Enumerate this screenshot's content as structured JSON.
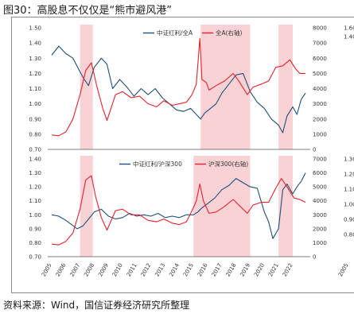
{
  "figure": {
    "title": "图30：高股息不仅仅是“熊市避风港”",
    "source": "资料来源：Wind，国信证券经济研究所整理"
  },
  "colors": {
    "blue": "#1f4e79",
    "red": "#e8202a",
    "shade": "#f9d2d6"
  },
  "chart_data": [
    {
      "type": "line",
      "x_range": [
        2005.0,
        2022.9
      ],
      "ylim_left": [
        0.7,
        1.5
      ],
      "left_ticks": [
        "1.50",
        "1.40",
        "1.30",
        "1.20",
        "1.10",
        "1.00",
        "0.90",
        "0.80",
        "0.70"
      ],
      "ylim_right": [
        0,
        8000
      ],
      "right_ticks": [
        "8000",
        "7000",
        "6000",
        "5000",
        "4000",
        "3000",
        "2000",
        "1000",
        "0"
      ],
      "right_edge_ticks": [
        "1.60",
        "1.40"
      ],
      "shaded_periods": [
        [
          2007.0,
          2007.9
        ],
        [
          2015.5,
          2019.0
        ],
        [
          2021.0,
          2022.0
        ]
      ],
      "legend_position": "top-center",
      "series": [
        {
          "name": "中证红利/全A",
          "axis": "left",
          "color": "#1f4e79",
          "x": [
            2005.0,
            2005.5,
            2006.0,
            2006.5,
            2007.0,
            2007.3,
            2007.6,
            2008.0,
            2008.5,
            2008.9,
            2009.3,
            2009.8,
            2010.3,
            2010.8,
            2011.3,
            2011.8,
            2012.3,
            2012.8,
            2013.3,
            2013.8,
            2014.3,
            2014.8,
            2015.2,
            2015.5,
            2015.8,
            2016.2,
            2016.6,
            2017.0,
            2017.5,
            2018.0,
            2018.5,
            2019.0,
            2019.5,
            2020.0,
            2020.5,
            2021.0,
            2021.3,
            2021.6,
            2022.0,
            2022.3,
            2022.6,
            2022.9
          ],
          "y": [
            1.32,
            1.38,
            1.33,
            1.3,
            1.21,
            1.16,
            1.12,
            1.24,
            1.3,
            1.26,
            1.1,
            1.16,
            1.11,
            1.05,
            1.1,
            1.06,
            1.1,
            1.04,
            1.0,
            0.96,
            0.95,
            0.97,
            0.93,
            0.9,
            0.94,
            0.97,
            1.0,
            1.07,
            1.13,
            1.19,
            1.2,
            1.08,
            1.01,
            0.97,
            0.9,
            0.86,
            0.81,
            0.92,
            0.98,
            0.93,
            1.03,
            1.07
          ]
        },
        {
          "name": "全A(右轴)",
          "axis": "right",
          "color": "#e8202a",
          "x": [
            2005.0,
            2005.5,
            2006.0,
            2006.5,
            2007.0,
            2007.4,
            2007.8,
            2008.2,
            2008.6,
            2008.9,
            2009.5,
            2010.0,
            2010.6,
            2011.2,
            2011.8,
            2012.4,
            2012.9,
            2013.5,
            2014.0,
            2014.5,
            2014.9,
            2015.2,
            2015.45,
            2015.6,
            2015.9,
            2016.1,
            2016.6,
            2017.2,
            2017.8,
            2018.2,
            2018.8,
            2019.2,
            2019.8,
            2020.3,
            2020.8,
            2021.3,
            2021.8,
            2022.2,
            2022.5,
            2022.9
          ],
          "y": [
            950,
            900,
            1150,
            2000,
            3600,
            5200,
            5700,
            4100,
            2700,
            1900,
            3600,
            3800,
            3400,
            3500,
            3000,
            2800,
            3200,
            2900,
            3000,
            3100,
            3600,
            4300,
            7300,
            4600,
            4400,
            3900,
            4200,
            4500,
            5000,
            4500,
            3600,
            4100,
            4300,
            4500,
            5400,
            5500,
            5900,
            5300,
            5000,
            5000
          ]
        }
      ]
    },
    {
      "type": "line",
      "x_range": [
        2005.0,
        2022.9
      ],
      "ylim_left": [
        0.7,
        1.4
      ],
      "left_ticks": [
        "1.40",
        "1.30",
        "1.20",
        "1.10",
        "1.00",
        "0.90",
        "0.80",
        "0.70"
      ],
      "ylim_right": [
        0,
        7000
      ],
      "right_ticks": [
        "7000",
        "6000",
        "5000",
        "4000",
        "3000",
        "2000",
        "1000",
        "0"
      ],
      "right_edge_ticks": [
        "1.30",
        "1.20",
        "1.10",
        "1.00",
        "0.90",
        "0.80"
      ],
      "shaded_periods": [
        [
          2007.0,
          2007.9
        ],
        [
          2015.0,
          2019.0
        ],
        [
          2021.0,
          2022.0
        ]
      ],
      "legend_position": "top-center",
      "x_tick_labels": [
        "2005",
        "2006",
        "2007",
        "2008",
        "2009",
        "2010",
        "2011",
        "2012",
        "2013",
        "2014",
        "2015",
        "2016",
        "2017",
        "2018",
        "2019",
        "2020",
        "2021",
        "2022"
      ],
      "right_edge_x_label": "2005",
      "series": [
        {
          "name": "中证红利/沪深300",
          "axis": "left",
          "color": "#1f4e79",
          "x": [
            2005.0,
            2005.5,
            2006.0,
            2006.4,
            2006.8,
            2007.2,
            2007.6,
            2008.0,
            2008.5,
            2009.0,
            2009.5,
            2010.0,
            2010.5,
            2011.0,
            2011.5,
            2012.0,
            2012.5,
            2013.0,
            2013.5,
            2014.0,
            2014.5,
            2015.0,
            2015.3,
            2015.6,
            2016.0,
            2016.5,
            2017.0,
            2017.5,
            2018.0,
            2018.5,
            2019.0,
            2019.5,
            2020.0,
            2020.3,
            2020.6,
            2021.0,
            2021.3,
            2021.6,
            2022.0,
            2022.3,
            2022.6,
            2022.9
          ],
          "y": [
            1.0,
            0.99,
            0.96,
            0.93,
            0.9,
            0.92,
            0.97,
            1.02,
            1.04,
            0.99,
            0.97,
            0.98,
            1.01,
            0.99,
            1.0,
            0.99,
            1.01,
            0.98,
            0.99,
            0.98,
            1.0,
            1.0,
            1.02,
            1.05,
            1.08,
            1.12,
            1.18,
            1.21,
            1.26,
            1.23,
            1.2,
            1.19,
            1.02,
            0.95,
            0.83,
            0.9,
            1.18,
            1.22,
            1.15,
            1.2,
            1.24,
            1.3
          ]
        },
        {
          "name": "沪深300(右轴)",
          "axis": "right",
          "color": "#e8202a",
          "x": [
            2005.0,
            2005.5,
            2006.0,
            2006.5,
            2007.0,
            2007.4,
            2007.8,
            2008.1,
            2008.5,
            2008.9,
            2009.5,
            2010.0,
            2010.6,
            2011.2,
            2011.8,
            2012.4,
            2012.9,
            2013.5,
            2014.0,
            2014.5,
            2014.9,
            2015.2,
            2015.45,
            2015.7,
            2016.1,
            2016.6,
            2017.2,
            2017.8,
            2018.2,
            2018.8,
            2019.2,
            2019.8,
            2020.3,
            2020.8,
            2021.2,
            2021.6,
            2022.1,
            2022.5,
            2022.9
          ],
          "y": [
            900,
            850,
            1100,
            1700,
            3400,
            5500,
            5800,
            4300,
            2800,
            1900,
            3300,
            3400,
            3000,
            3000,
            2600,
            2500,
            2700,
            2400,
            2300,
            2500,
            3300,
            4000,
            5200,
            4000,
            3100,
            3200,
            3600,
            4100,
            3700,
            3100,
            3700,
            3900,
            3900,
            4900,
            5600,
            5000,
            4200,
            4100,
            3900
          ]
        }
      ]
    }
  ]
}
